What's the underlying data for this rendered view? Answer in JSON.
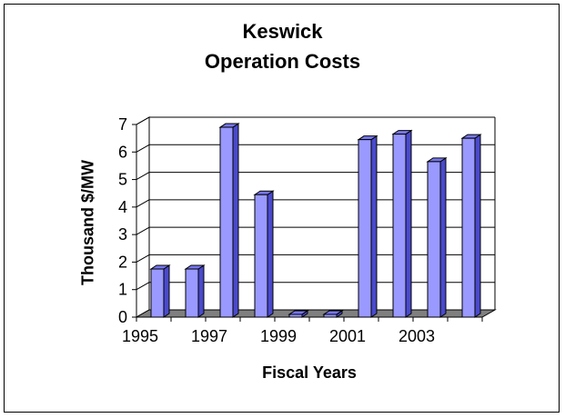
{
  "chart_data": {
    "type": "bar",
    "title": [
      "Keswick",
      "Operation Costs"
    ],
    "xlabel": "Fiscal Years",
    "ylabel": "Thousand $/MW",
    "categories": [
      "1995",
      "1996",
      "1997",
      "1998",
      "1999",
      "2000",
      "2001",
      "2002",
      "2003",
      "2004"
    ],
    "x_tick_labels": [
      "1995",
      "",
      "1997",
      "",
      "1999",
      "",
      "2001",
      "",
      "2003",
      ""
    ],
    "values": [
      1.75,
      1.75,
      6.9,
      4.45,
      0.1,
      0.1,
      6.45,
      6.65,
      5.65,
      6.5
    ],
    "ylim": [
      0,
      7
    ],
    "yticks": [
      0,
      1,
      2,
      3,
      4,
      5,
      6,
      7
    ],
    "grid": true,
    "legend": false,
    "colors": {
      "bar_front": "#9999ff",
      "bar_side": "#4a4acc",
      "bar_top": "#7777ee",
      "floor": "#808080",
      "grid": "#000000"
    }
  }
}
